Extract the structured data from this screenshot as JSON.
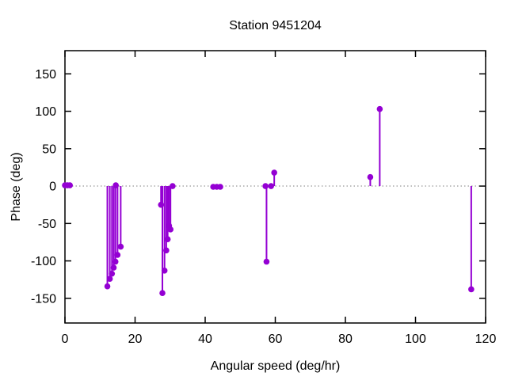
{
  "chart_data": {
    "type": "scatter",
    "plot_style": "impulses+points",
    "title": "Station 9451204",
    "xlabel": "Angular speed (deg/hr)",
    "ylabel": "Phase (deg)",
    "xlim": [
      0,
      120
    ],
    "ylim": [
      -183,
      181
    ],
    "x_ticks": [
      0,
      20,
      40,
      60,
      80,
      100,
      120
    ],
    "y_ticks": [
      -150,
      -100,
      -50,
      0,
      50,
      100,
      150
    ],
    "grid": false,
    "zero_axis": "dotted",
    "legend": "none",
    "border_color": "#000000",
    "background_color": "#ffffff",
    "series": [
      {
        "name": "phase",
        "color": "#9400d3",
        "marker": "filled-circle",
        "points": [
          [
            0.0,
            1
          ],
          [
            0.7,
            1
          ],
          [
            1.4,
            1
          ],
          [
            12.1,
            -134
          ],
          [
            12.8,
            -124
          ],
          [
            13.4,
            -117
          ],
          [
            13.9,
            -109
          ],
          [
            14.4,
            -101
          ],
          [
            14.5,
            1
          ],
          [
            15.0,
            -92
          ],
          [
            15.9,
            -81
          ],
          [
            27.4,
            -25
          ],
          [
            27.8,
            -143
          ],
          [
            28.4,
            -113
          ],
          [
            28.9,
            -86
          ],
          [
            29.3,
            -71
          ],
          [
            29.7,
            -53
          ],
          [
            30.1,
            -58
          ],
          [
            30.7,
            0
          ],
          [
            42.3,
            -1
          ],
          [
            43.3,
            -1
          ],
          [
            44.3,
            -1
          ],
          [
            57.2,
            0
          ],
          [
            57.5,
            -101
          ],
          [
            58.8,
            0
          ],
          [
            59.7,
            18
          ],
          [
            87.1,
            12
          ],
          [
            89.8,
            103
          ],
          [
            115.9,
            -138
          ]
        ]
      }
    ]
  }
}
